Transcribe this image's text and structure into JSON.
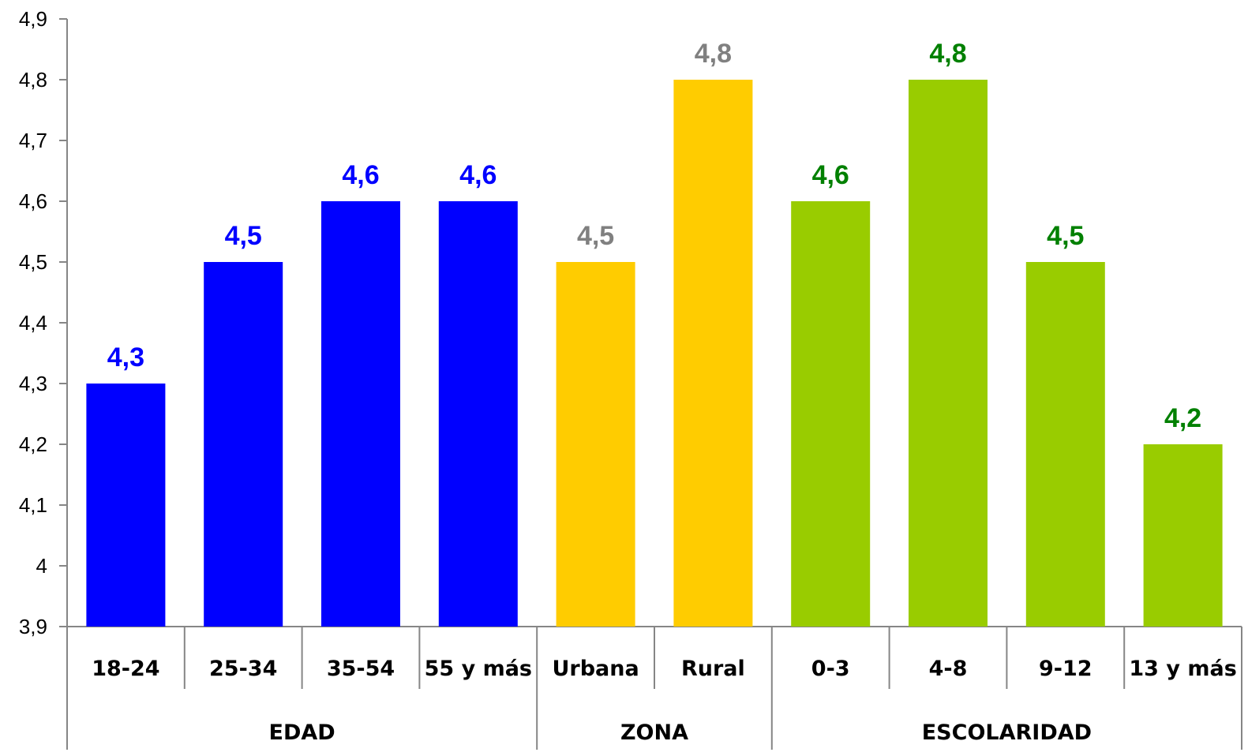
{
  "chart_data": {
    "type": "bar",
    "categories": [
      "18-24",
      "25-34",
      "35-54",
      "55 y más",
      "Urbana",
      "Rural",
      "0-3",
      "4-8",
      "9-12",
      "13 y más"
    ],
    "values": [
      4.3,
      4.5,
      4.6,
      4.6,
      4.5,
      4.8,
      4.6,
      4.8,
      4.5,
      4.2
    ],
    "data_labels": [
      "4,3",
      "4,5",
      "4,6",
      "4,6",
      "4,5",
      "4,8",
      "4,6",
      "4,8",
      "4,5",
      "4,2"
    ],
    "groups": [
      {
        "name": "EDAD",
        "count": 4,
        "bar_color": "#0000FF",
        "label_color": "#0000FF"
      },
      {
        "name": "ZONA",
        "count": 2,
        "bar_color": "#FFCC00",
        "label_color": "#808080"
      },
      {
        "name": "ESCOLARIDAD",
        "count": 4,
        "bar_color": "#99CC00",
        "label_color": "#008000"
      }
    ],
    "ylim": [
      3.9,
      4.9
    ],
    "yticks": [
      "3,9",
      "4",
      "4,1",
      "4,2",
      "4,3",
      "4,4",
      "4,5",
      "4,6",
      "4,7",
      "4,8",
      "4,9"
    ],
    "ytick_values": [
      3.9,
      4.0,
      4.1,
      4.2,
      4.3,
      4.4,
      4.5,
      4.6,
      4.7,
      4.8,
      4.9
    ],
    "grid": false,
    "legend": "none",
    "title": "",
    "xlabel": "",
    "ylabel": ""
  }
}
